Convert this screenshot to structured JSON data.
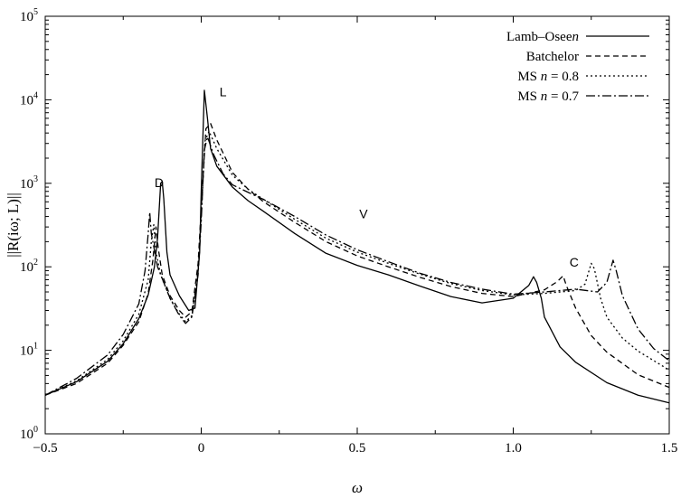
{
  "chart_data": {
    "type": "line",
    "xlabel": "ω",
    "ylabel": "||R(iω; L)||",
    "xlim": [
      -0.5,
      1.5
    ],
    "ylim": [
      1,
      100000
    ],
    "yscale": "log",
    "grid": false,
    "legend_position": "top-right",
    "x_ticks": [
      {
        "value": -0.5,
        "label": "−0.5"
      },
      {
        "value": 0,
        "label": "0"
      },
      {
        "value": 0.5,
        "label": "0.5"
      },
      {
        "value": 1.0,
        "label": "1.0"
      },
      {
        "value": 1.5,
        "label": "1.5"
      }
    ],
    "y_ticks": [
      {
        "value": 1,
        "base": "10",
        "exp": "0"
      },
      {
        "value": 10,
        "base": "10",
        "exp": "1"
      },
      {
        "value": 100,
        "base": "10",
        "exp": "2"
      },
      {
        "value": 1000,
        "base": "10",
        "exp": "3"
      },
      {
        "value": 10000,
        "base": "10",
        "exp": "4"
      },
      {
        "value": 100000,
        "base": "10",
        "exp": "5"
      }
    ],
    "annotations": [
      {
        "text": "D",
        "x": -0.135,
        "y": 900
      },
      {
        "text": "L",
        "x": 0.07,
        "y": 11000
      },
      {
        "text": "V",
        "x": 0.52,
        "y": 380
      },
      {
        "text": "C",
        "x": 1.195,
        "y": 100
      }
    ],
    "series": [
      {
        "name": "Lamb–Oseen",
        "dash": "none",
        "points": [
          [
            -0.5,
            2.9
          ],
          [
            -0.4,
            4.2
          ],
          [
            -0.3,
            7.4
          ],
          [
            -0.25,
            12
          ],
          [
            -0.2,
            24
          ],
          [
            -0.17,
            46
          ],
          [
            -0.15,
            100
          ],
          [
            -0.14,
            220
          ],
          [
            -0.13,
            1000
          ],
          [
            -0.125,
            1050
          ],
          [
            -0.12,
            650
          ],
          [
            -0.11,
            150
          ],
          [
            -0.1,
            80
          ],
          [
            -0.07,
            45
          ],
          [
            -0.04,
            30
          ],
          [
            -0.02,
            32
          ],
          [
            -0.005,
            150
          ],
          [
            0.0,
            800
          ],
          [
            0.01,
            13000
          ],
          [
            0.02,
            6000
          ],
          [
            0.03,
            2600
          ],
          [
            0.05,
            1600
          ],
          [
            0.1,
            900
          ],
          [
            0.15,
            620
          ],
          [
            0.2,
            460
          ],
          [
            0.3,
            250
          ],
          [
            0.4,
            145
          ],
          [
            0.5,
            104
          ],
          [
            0.6,
            80
          ],
          [
            0.7,
            59
          ],
          [
            0.8,
            44
          ],
          [
            0.9,
            37
          ],
          [
            1.0,
            42
          ],
          [
            1.05,
            60
          ],
          [
            1.065,
            76
          ],
          [
            1.075,
            65
          ],
          [
            1.09,
            42
          ],
          [
            1.1,
            25
          ],
          [
            1.15,
            11
          ],
          [
            1.2,
            7.2
          ],
          [
            1.3,
            4.1
          ],
          [
            1.4,
            2.9
          ],
          [
            1.5,
            2.35
          ]
        ]
      },
      {
        "name": "Batchelor",
        "dash": "6 4",
        "points": [
          [
            -0.5,
            2.9
          ],
          [
            -0.4,
            4.0
          ],
          [
            -0.3,
            7.0
          ],
          [
            -0.25,
            11.5
          ],
          [
            -0.2,
            22
          ],
          [
            -0.17,
            48
          ],
          [
            -0.155,
            120
          ],
          [
            -0.145,
            300
          ],
          [
            -0.138,
            170
          ],
          [
            -0.125,
            80
          ],
          [
            -0.1,
            45
          ],
          [
            -0.07,
            30
          ],
          [
            -0.05,
            25
          ],
          [
            -0.03,
            29
          ],
          [
            -0.01,
            110
          ],
          [
            0.0,
            500
          ],
          [
            0.015,
            4500
          ],
          [
            0.03,
            5200
          ],
          [
            0.05,
            3300
          ],
          [
            0.1,
            1350
          ],
          [
            0.15,
            850
          ],
          [
            0.2,
            600
          ],
          [
            0.3,
            340
          ],
          [
            0.4,
            200
          ],
          [
            0.5,
            135
          ],
          [
            0.6,
            100
          ],
          [
            0.7,
            75
          ],
          [
            0.8,
            58
          ],
          [
            0.9,
            48
          ],
          [
            1.0,
            44
          ],
          [
            1.1,
            53
          ],
          [
            1.14,
            66
          ],
          [
            1.16,
            78
          ],
          [
            1.17,
            60
          ],
          [
            1.2,
            32
          ],
          [
            1.25,
            15
          ],
          [
            1.3,
            9.5
          ],
          [
            1.4,
            5.1
          ],
          [
            1.5,
            3.6
          ]
        ]
      },
      {
        "name": "MS n = 0.8",
        "dash": "2 3",
        "points": [
          [
            -0.5,
            2.9
          ],
          [
            -0.4,
            4.3
          ],
          [
            -0.3,
            7.8
          ],
          [
            -0.25,
            13
          ],
          [
            -0.2,
            27
          ],
          [
            -0.17,
            70
          ],
          [
            -0.16,
            200
          ],
          [
            -0.152,
            320
          ],
          [
            -0.145,
            150
          ],
          [
            -0.13,
            80
          ],
          [
            -0.1,
            42
          ],
          [
            -0.07,
            27
          ],
          [
            -0.05,
            22
          ],
          [
            -0.03,
            26
          ],
          [
            -0.01,
            90
          ],
          [
            0.0,
            400
          ],
          [
            0.012,
            3200
          ],
          [
            0.025,
            4200
          ],
          [
            0.05,
            2600
          ],
          [
            0.1,
            1250
          ],
          [
            0.15,
            850
          ],
          [
            0.2,
            640
          ],
          [
            0.3,
            370
          ],
          [
            0.4,
            220
          ],
          [
            0.5,
            150
          ],
          [
            0.6,
            110
          ],
          [
            0.7,
            82
          ],
          [
            0.8,
            63
          ],
          [
            0.9,
            52
          ],
          [
            1.0,
            46
          ],
          [
            1.1,
            48
          ],
          [
            1.2,
            52
          ],
          [
            1.23,
            62
          ],
          [
            1.25,
            110
          ],
          [
            1.26,
            95
          ],
          [
            1.28,
            42
          ],
          [
            1.3,
            25
          ],
          [
            1.35,
            14
          ],
          [
            1.4,
            9.8
          ],
          [
            1.5,
            5.8
          ]
        ]
      },
      {
        "name": "MS n = 0.7",
        "dash": "10 3 2 3",
        "points": [
          [
            -0.5,
            2.9
          ],
          [
            -0.4,
            4.6
          ],
          [
            -0.3,
            8.8
          ],
          [
            -0.25,
            15.5
          ],
          [
            -0.2,
            36
          ],
          [
            -0.18,
            90
          ],
          [
            -0.17,
            250
          ],
          [
            -0.165,
            450
          ],
          [
            -0.16,
            250
          ],
          [
            -0.14,
            100
          ],
          [
            -0.1,
            42
          ],
          [
            -0.07,
            26
          ],
          [
            -0.05,
            21
          ],
          [
            -0.03,
            25
          ],
          [
            -0.01,
            80
          ],
          [
            0.0,
            350
          ],
          [
            0.01,
            2500
          ],
          [
            0.02,
            3600
          ],
          [
            0.04,
            2200
          ],
          [
            0.07,
            1300
          ],
          [
            0.1,
            960
          ],
          [
            0.15,
            780
          ],
          [
            0.2,
            640
          ],
          [
            0.3,
            400
          ],
          [
            0.4,
            240
          ],
          [
            0.5,
            160
          ],
          [
            0.6,
            115
          ],
          [
            0.7,
            84
          ],
          [
            0.8,
            65
          ],
          [
            0.9,
            54
          ],
          [
            1.0,
            47
          ],
          [
            1.1,
            50
          ],
          [
            1.2,
            54
          ],
          [
            1.27,
            50
          ],
          [
            1.3,
            65
          ],
          [
            1.32,
            120
          ],
          [
            1.33,
            90
          ],
          [
            1.35,
            45
          ],
          [
            1.4,
            18
          ],
          [
            1.45,
            10.5
          ],
          [
            1.5,
            7.5
          ]
        ]
      }
    ]
  }
}
